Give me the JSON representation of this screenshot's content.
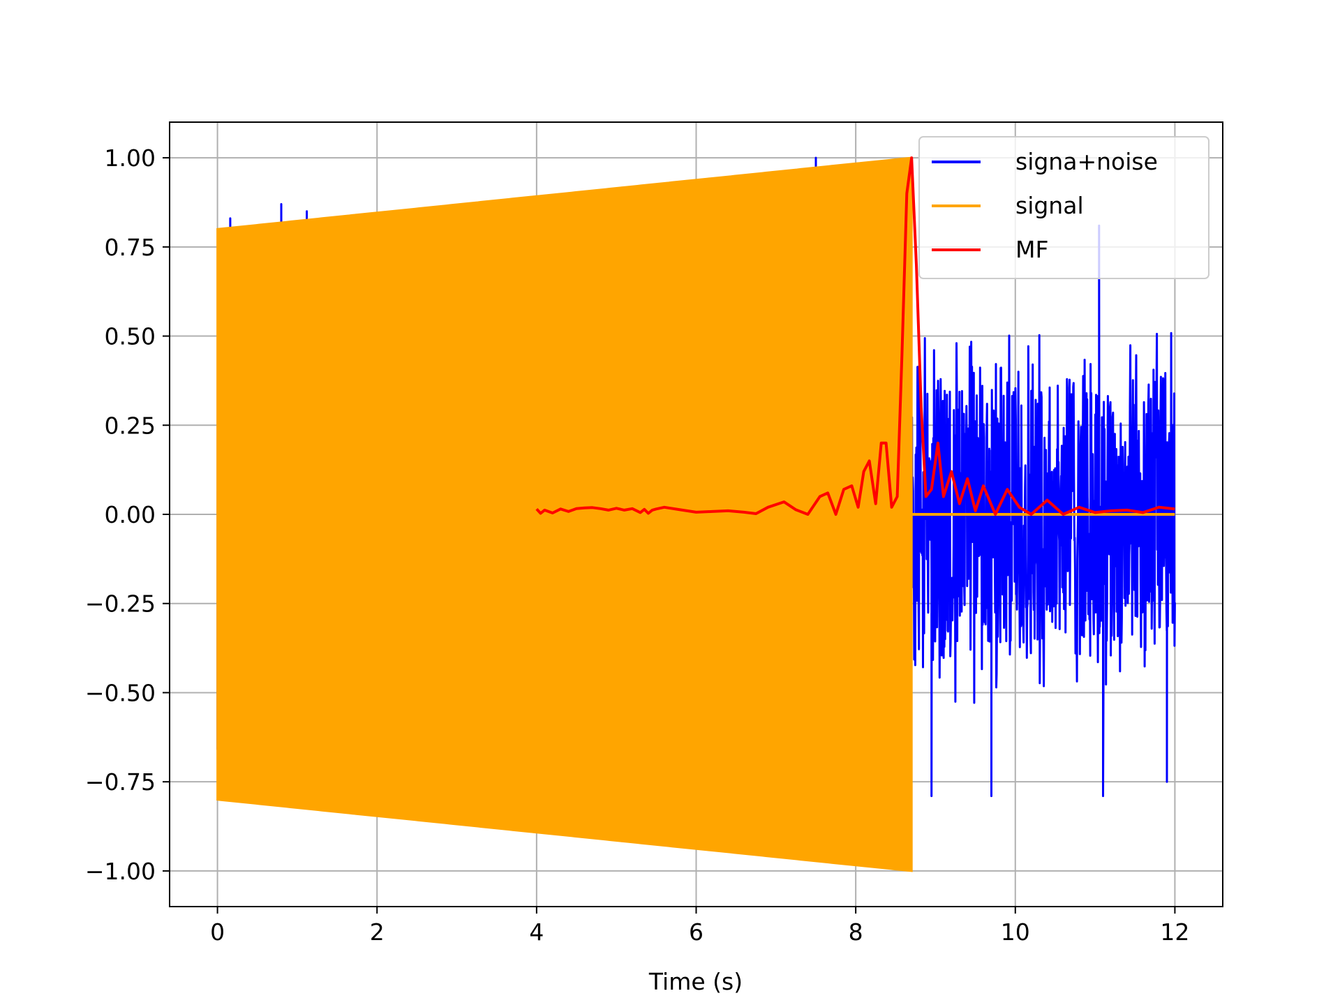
{
  "chart_data": {
    "type": "line",
    "title": "",
    "xlabel": "Time (s)",
    "ylabel": "",
    "xlim": [
      -0.6,
      12.6
    ],
    "ylim": [
      -1.1,
      1.1
    ],
    "x_ticks": [
      0,
      2,
      4,
      6,
      8,
      10,
      12
    ],
    "y_ticks": [
      1.0,
      0.75,
      0.5,
      0.25,
      0.0,
      -0.25,
      -0.5,
      -0.75,
      -1.0
    ],
    "x_tick_labels": [
      "0",
      "2",
      "4",
      "6",
      "8",
      "10",
      "12"
    ],
    "y_tick_labels": [
      "1.00",
      "0.75",
      "0.50",
      "0.25",
      "0.00",
      "−0.25",
      "−0.50",
      "−0.75",
      "−1.00"
    ],
    "grid": true,
    "legend_position": "top-right",
    "series": [
      {
        "name": "signa+noise",
        "color": "#0000ff",
        "kind": "noisy_signal",
        "noise_amplitude": 0.5,
        "x_range": [
          0,
          12
        ],
        "peaks": [
          {
            "x": 0.16,
            "y": 0.83
          },
          {
            "x": 0.8,
            "y": 0.87
          },
          {
            "x": 1.12,
            "y": 0.85
          },
          {
            "x": 7.5,
            "y": 1.0
          },
          {
            "x": 8.95,
            "y": -0.79
          },
          {
            "x": 9.7,
            "y": -0.79
          },
          {
            "x": 11.05,
            "y": 0.81
          },
          {
            "x": 11.1,
            "y": -0.79
          },
          {
            "x": 11.9,
            "y": -0.75
          }
        ]
      },
      {
        "name": "signal",
        "color": "#ffa500",
        "kind": "chirp",
        "x_range": [
          0,
          8.7
        ],
        "start_amplitude": 0.8,
        "end_amplitude": 1.0,
        "after_end_value": 0.0,
        "after_end_range": [
          8.7,
          12
        ]
      },
      {
        "name": "MF",
        "color": "#ff0000",
        "kind": "line",
        "x": [
          4.0,
          4.05,
          4.1,
          4.2,
          4.3,
          4.4,
          4.5,
          4.6,
          4.7,
          4.8,
          4.9,
          5.0,
          5.1,
          5.2,
          5.3,
          5.35,
          5.4,
          5.45,
          5.5,
          5.6,
          5.8,
          6.0,
          6.2,
          6.4,
          6.6,
          6.75,
          6.9,
          7.1,
          7.25,
          7.4,
          7.55,
          7.65,
          7.75,
          7.85,
          7.95,
          8.03,
          8.1,
          8.17,
          8.25,
          8.32,
          8.38,
          8.45,
          8.52,
          8.58,
          8.64,
          8.7,
          8.76,
          8.82,
          8.88,
          8.95,
          9.03,
          9.1,
          9.2,
          9.3,
          9.4,
          9.5,
          9.6,
          9.75,
          9.9,
          10.05,
          10.2,
          10.4,
          10.6,
          10.8,
          11.0,
          11.2,
          11.4,
          11.6,
          11.8,
          12.0
        ],
        "y": [
          0.015,
          0.003,
          0.012,
          0.004,
          0.015,
          0.008,
          0.016,
          0.018,
          0.019,
          0.016,
          0.012,
          0.017,
          0.012,
          0.016,
          0.005,
          0.014,
          0.003,
          0.012,
          0.015,
          0.02,
          0.013,
          0.006,
          0.008,
          0.01,
          0.006,
          0.002,
          0.02,
          0.035,
          0.013,
          0.0,
          0.05,
          0.06,
          0.0,
          0.07,
          0.08,
          0.02,
          0.12,
          0.15,
          0.03,
          0.2,
          0.2,
          0.02,
          0.05,
          0.45,
          0.9,
          1.0,
          0.7,
          0.3,
          0.05,
          0.07,
          0.2,
          0.05,
          0.12,
          0.03,
          0.1,
          0.01,
          0.08,
          0.0,
          0.07,
          0.02,
          0.0,
          0.04,
          0.0,
          0.02,
          0.005,
          0.01,
          0.012,
          0.005,
          0.02,
          0.015
        ]
      }
    ]
  }
}
